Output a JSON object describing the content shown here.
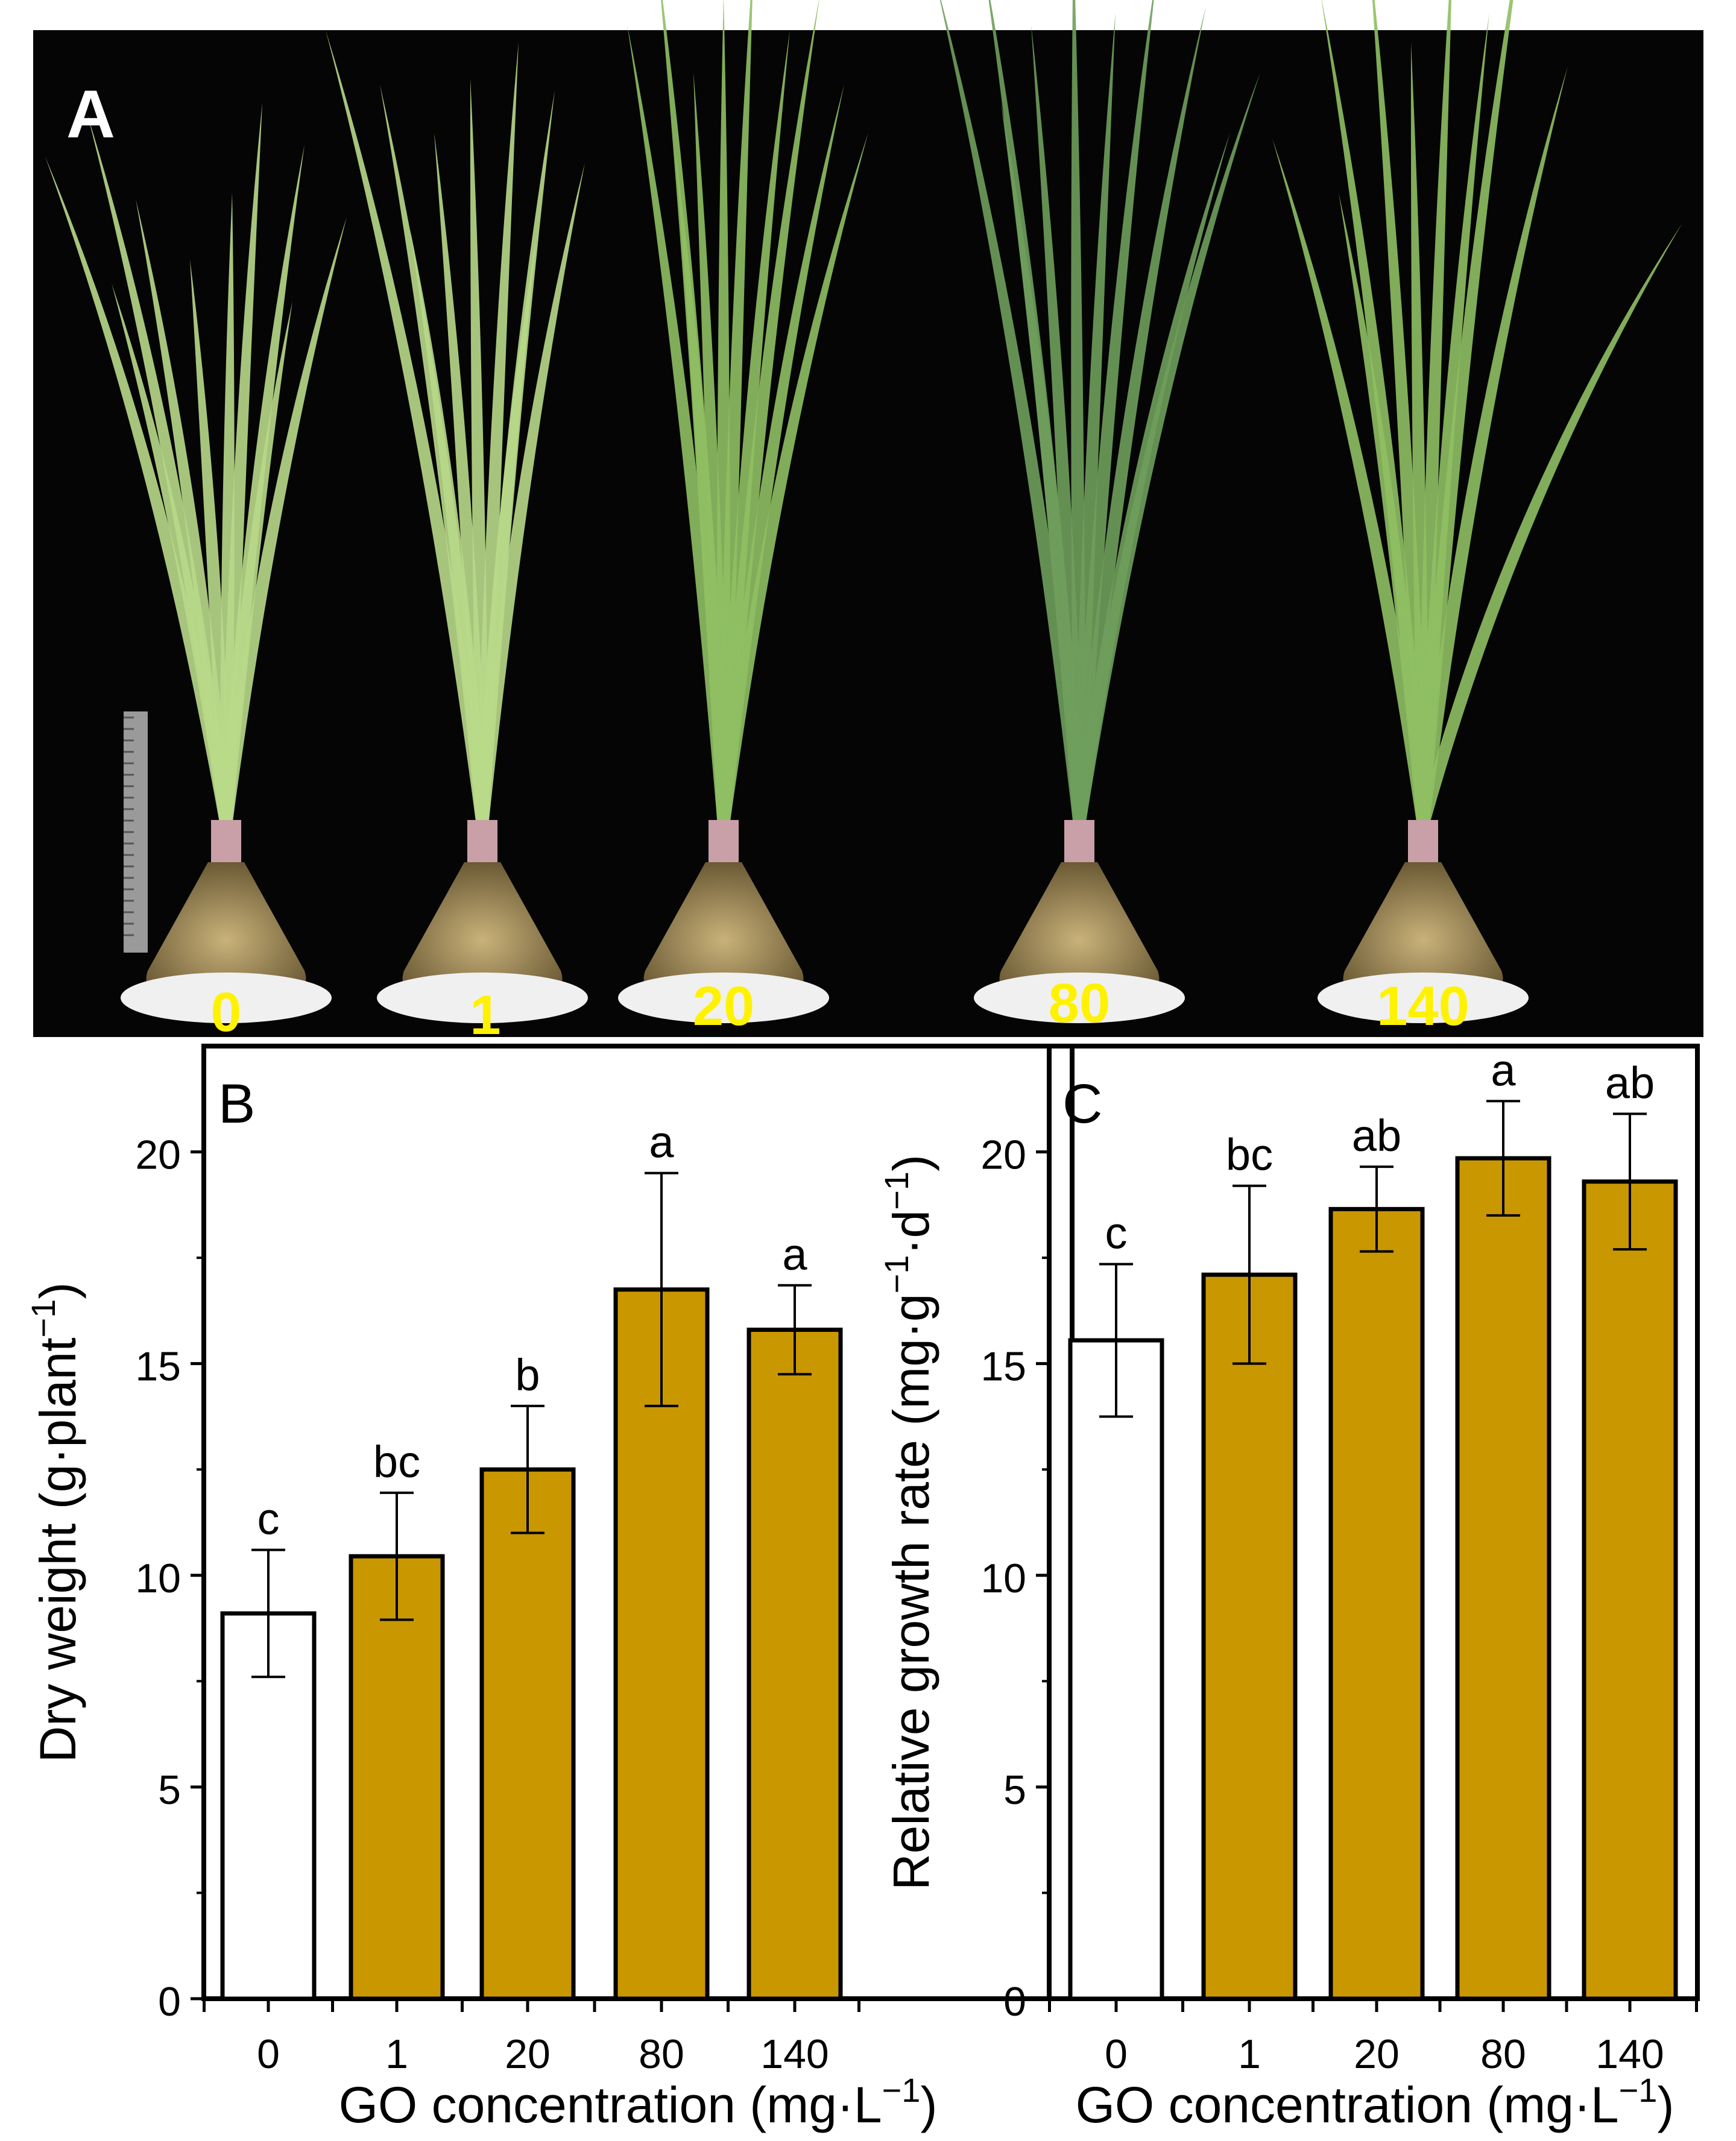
{
  "colors": {
    "photo_background": "#050505",
    "bar_treated": "#C99700",
    "bar_control": "#ffffff",
    "label_yellow": "#FFF200",
    "leaf_light": "#B9D98A",
    "leaf_mid": "#8FBF63",
    "leaf_dark": "#6F9F5C",
    "axis": "#000000"
  },
  "photo": {
    "panel_label": "A",
    "plants": [
      {
        "label": "0",
        "leaf_color": "leaf_light"
      },
      {
        "label": "1",
        "leaf_color": "leaf_light"
      },
      {
        "label": "20",
        "leaf_color": "leaf_mid"
      },
      {
        "label": "80",
        "leaf_color": "leaf_dark"
      },
      {
        "label": "140",
        "leaf_color": "leaf_mid"
      }
    ]
  },
  "chart_data": [
    {
      "type": "bar",
      "panel_label": "B",
      "categories": [
        "0",
        "1",
        "20",
        "80",
        "140"
      ],
      "values": [
        9.1,
        10.45,
        12.5,
        16.75,
        15.8
      ],
      "errors": [
        1.5,
        1.5,
        1.5,
        2.75,
        1.05
      ],
      "significance": [
        "c",
        "bc",
        "b",
        "a",
        "a"
      ],
      "xlabel": "GO concentration (mg·L",
      "xlabel_sup": "−1",
      "xlabel_end": ")",
      "ylabel": "Dry weight (g·plant",
      "ylabel_sup": "−1",
      "ylabel_end": ")",
      "yticks": [
        "0",
        "5",
        "10",
        "15",
        "20"
      ],
      "ylim": [
        0,
        22.5
      ],
      "grid": false,
      "legend": "none"
    },
    {
      "type": "bar",
      "panel_label": "C",
      "categories": [
        "0",
        "1",
        "20",
        "80",
        "140"
      ],
      "values": [
        15.55,
        17.1,
        18.65,
        19.85,
        19.3
      ],
      "errors": [
        1.8,
        2.1,
        1.0,
        1.35,
        1.6
      ],
      "significance": [
        "c",
        "bc",
        "ab",
        "a",
        "ab"
      ],
      "xlabel": "GO concentration (mg·L",
      "xlabel_sup": "−1",
      "xlabel_end": ")",
      "ylabel": "Relative growth rate (mg·g",
      "ylabel_sup": "−1",
      "ylabel_mid": "·d",
      "ylabel_sup2": "−1",
      "ylabel_end": ")",
      "yticks": [
        "0",
        "5",
        "10",
        "15",
        "20"
      ],
      "ylim": [
        0,
        22.5
      ],
      "grid": false,
      "legend": "none"
    }
  ]
}
